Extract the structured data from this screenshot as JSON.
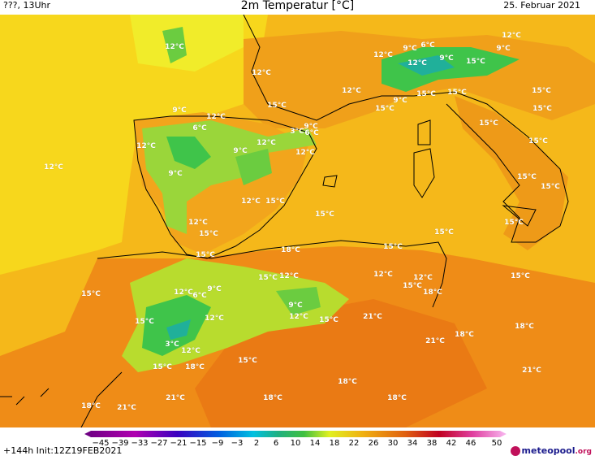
{
  "header": {
    "left": "???, 13Uhr",
    "title": "2m Temperatur [°C]",
    "date": "25. Februar 2021"
  },
  "footer": {
    "init": "+144h Init:12Z19FEB2021",
    "scale_ticks": [
      "−45",
      "−39",
      "−33",
      "−27",
      "−21",
      "−15",
      "−9",
      "−3",
      "2",
      "6",
      "10",
      "14",
      "18",
      "22",
      "26",
      "30",
      "34",
      "38",
      "42",
      "46",
      "50"
    ],
    "logo_main": "meteopool",
    "logo_tld": ".org"
  },
  "map_labels": [
    {
      "t": "12°C"
    },
    {
      "t": "15°C"
    },
    {
      "t": "9°C"
    },
    {
      "t": "6°C"
    },
    {
      "t": "18°C"
    },
    {
      "t": "21°C"
    },
    {
      "t": "3°C"
    }
  ]
}
